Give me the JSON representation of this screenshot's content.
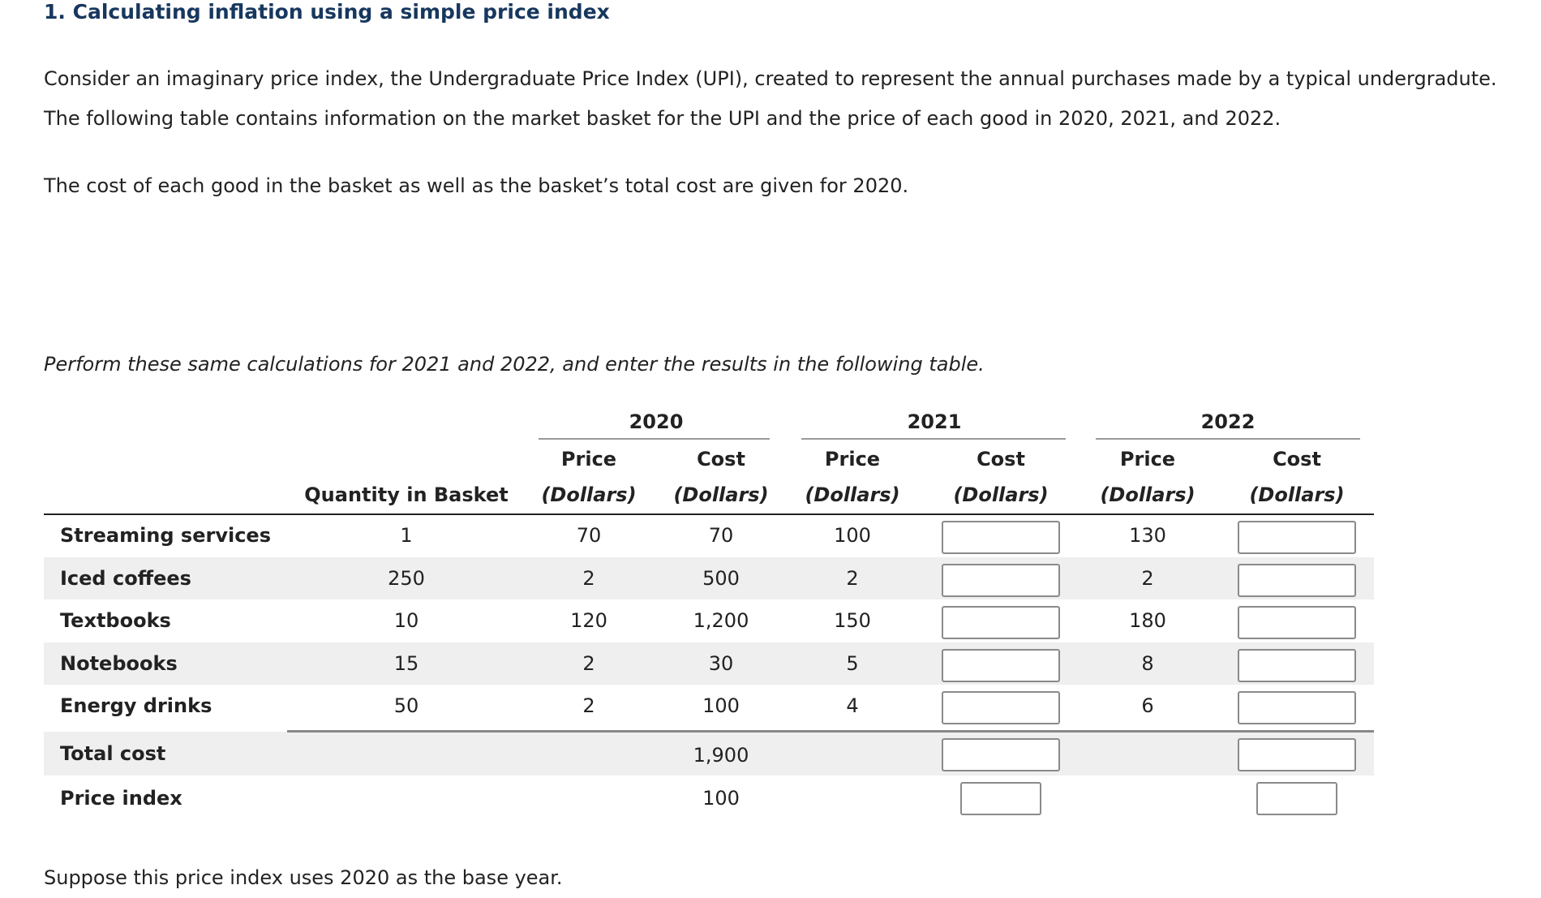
{
  "title": "1. Calculating inflation using a simple price index",
  "intro": "Consider an imaginary price index, the Undergraduate Price Index (UPI), created to represent the annual purchases made by a typical undergradute.",
  "intro_line2": "The following table contains information on the market basket for the UPI and the price of each good in 2020, 2021, and 2022.",
  "given": "The cost of each good in the basket as well as the basket’s total cost are given for 2020.",
  "instruction": "Perform these same calculations for 2021 and 2022, and enter the results in the following table.",
  "base_year_note": "Suppose this price index uses 2020 as the base year.",
  "table": {
    "years": [
      "2020",
      "2021",
      "2022"
    ],
    "quantity_header": "Quantity in Basket",
    "price_header": "Price",
    "cost_header": "Cost",
    "unit_header": "(Dollars)",
    "rows": [
      {
        "label": "Streaming services",
        "quantity": "1",
        "price_2020": "70",
        "cost_2020": "70",
        "price_2021": "100",
        "cost_2021": "",
        "price_2022": "130",
        "cost_2022": ""
      },
      {
        "label": "Iced coffees",
        "quantity": "250",
        "price_2020": "2",
        "cost_2020": "500",
        "price_2021": "2",
        "cost_2021": "",
        "price_2022": "2",
        "cost_2022": ""
      },
      {
        "label": "Textbooks",
        "quantity": "10",
        "price_2020": "120",
        "cost_2020": "1,200",
        "price_2021": "150",
        "cost_2021": "",
        "price_2022": "180",
        "cost_2022": ""
      },
      {
        "label": "Notebooks",
        "quantity": "15",
        "price_2020": "2",
        "cost_2020": "30",
        "price_2021": "5",
        "cost_2021": "",
        "price_2022": "8",
        "cost_2022": ""
      },
      {
        "label": "Energy drinks",
        "quantity": "50",
        "price_2020": "2",
        "cost_2020": "100",
        "price_2021": "4",
        "cost_2021": "",
        "price_2022": "6",
        "cost_2022": ""
      }
    ],
    "total_label": "Total cost",
    "total_2020": "1,900",
    "total_2021": "",
    "total_2022": "",
    "index_label": "Price index",
    "index_2020": "100",
    "index_2021": "",
    "index_2022": ""
  }
}
